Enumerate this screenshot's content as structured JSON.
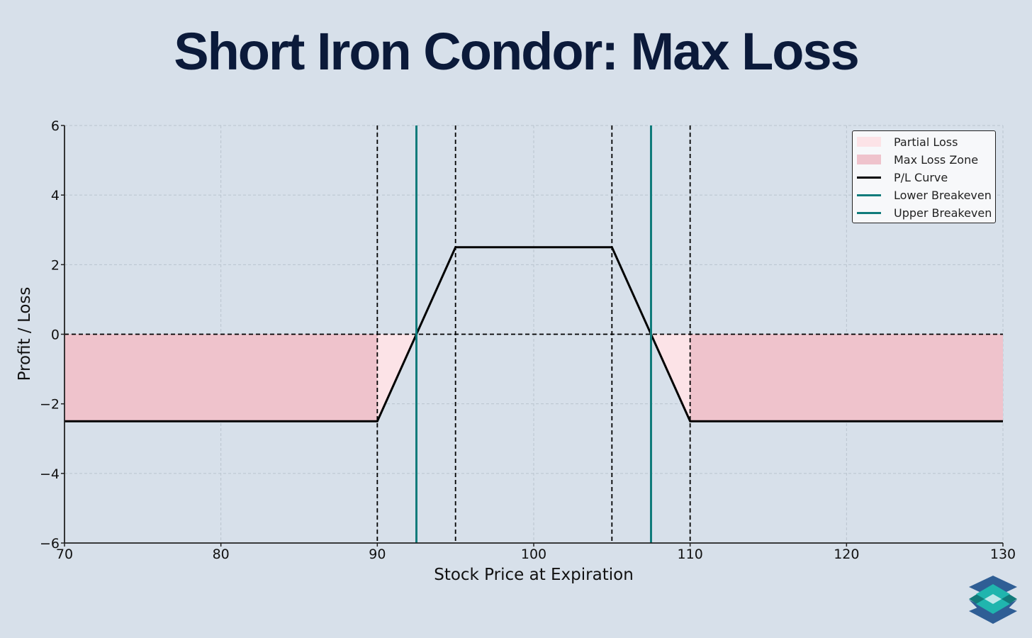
{
  "title": "Short Iron Condor: Max Loss",
  "chart_data": {
    "type": "line",
    "title": "Short Iron Condor: Max Loss",
    "xlabel": "Stock Price at Expiration",
    "ylabel": "Profit / Loss",
    "xlim": [
      70,
      130
    ],
    "ylim": [
      -6,
      6
    ],
    "xticks": [
      70,
      80,
      90,
      100,
      110,
      120,
      130
    ],
    "xtick_labels": [
      "70",
      "80",
      "90",
      "100",
      "110",
      "120",
      "130"
    ],
    "yticks": [
      -6,
      -4,
      -2,
      0,
      2,
      4,
      6
    ],
    "ytick_labels": [
      "−6",
      "−4",
      "−2",
      "0",
      "2",
      "4",
      "6"
    ],
    "grid": true,
    "legend_position": "upper right",
    "series": [
      {
        "name": "P/L Curve",
        "type": "line",
        "color": "#000000",
        "x": [
          70,
          90,
          95,
          105,
          110,
          130
        ],
        "y": [
          -2.5,
          -2.5,
          2.5,
          2.5,
          -2.5,
          -2.5
        ]
      },
      {
        "name": "Lower Breakeven",
        "type": "vline",
        "color": "#0f7b7b",
        "x": 92.5
      },
      {
        "name": "Upper Breakeven",
        "type": "vline",
        "color": "#0f7b7b",
        "x": 107.5
      }
    ],
    "fills": [
      {
        "name": "Partial Loss",
        "color": "#fce3e7",
        "regions": [
          {
            "x": [
              90,
              92.5
            ],
            "y_from": "curve",
            "y_to": 0
          },
          {
            "x": [
              107.5,
              110
            ],
            "y_from": "curve",
            "y_to": 0
          }
        ]
      },
      {
        "name": "Max Loss Zone",
        "color": "#efc3cc",
        "regions": [
          {
            "x": [
              70,
              90
            ],
            "y_from": -2.5,
            "y_to": 0
          },
          {
            "x": [
              110,
              130
            ],
            "y_from": -2.5,
            "y_to": 0
          }
        ]
      }
    ],
    "reference_lines": {
      "strikes_dashed": [
        90,
        95,
        105,
        110
      ],
      "zero_line_dashed": 0
    },
    "max_profit": 2.5,
    "max_loss": -2.5
  },
  "legend": {
    "items": [
      {
        "label": "Partial Loss",
        "kind": "patch",
        "color": "#fce3e7"
      },
      {
        "label": "Max Loss Zone",
        "kind": "patch",
        "color": "#efc3cc"
      },
      {
        "label": "P/L Curve",
        "kind": "line",
        "color": "#000000"
      },
      {
        "label": "Lower Breakeven",
        "kind": "line",
        "color": "#0f7b7b"
      },
      {
        "label": "Upper Breakeven",
        "kind": "line",
        "color": "#0f7b7b"
      }
    ]
  },
  "logo": {
    "icon": "stacked-layers-icon"
  }
}
